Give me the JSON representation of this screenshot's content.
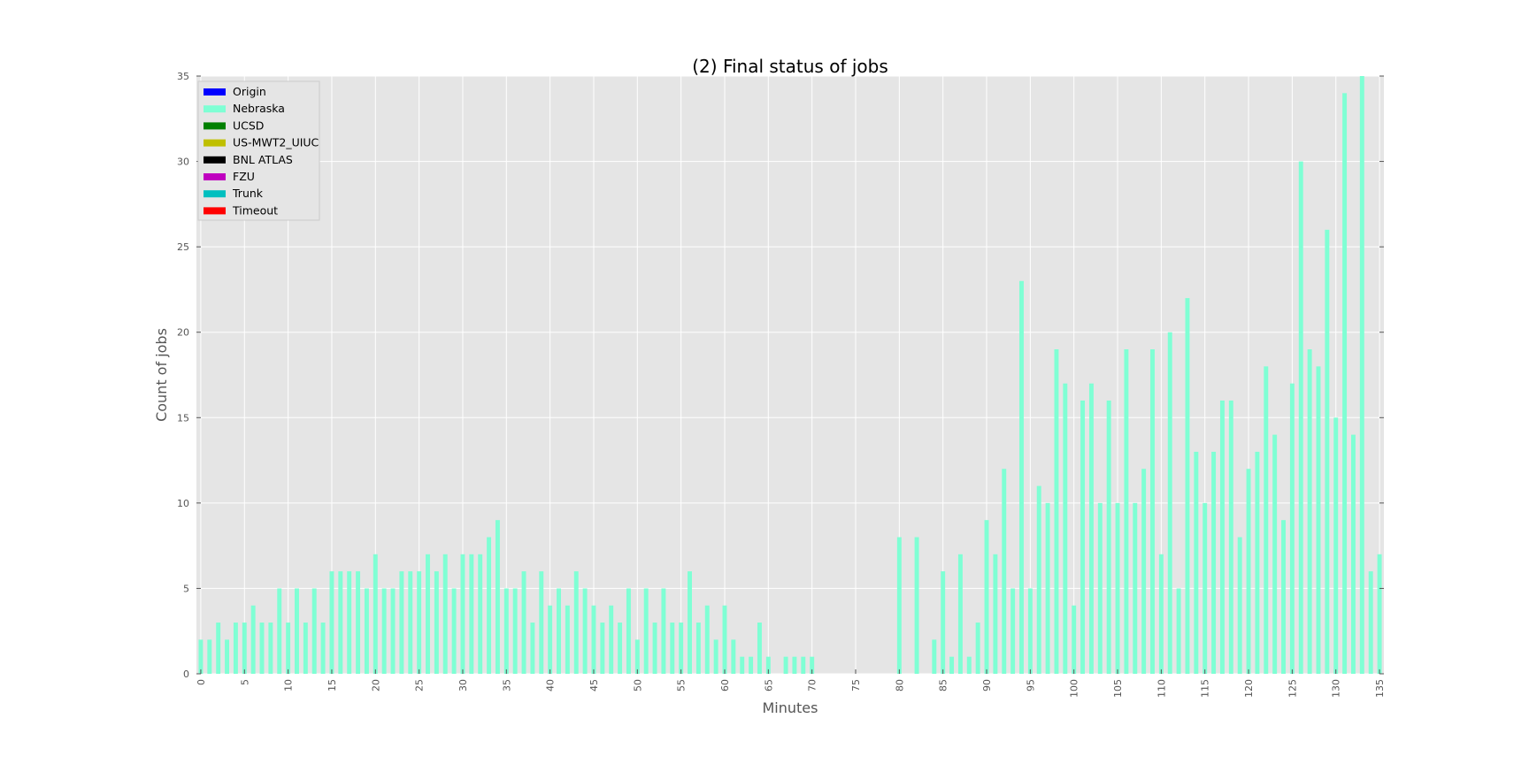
{
  "chart_data": {
    "type": "bar",
    "title": "(2) Final status of jobs",
    "xlabel": "Minutes",
    "ylabel": "Count of jobs",
    "ylim": [
      0,
      35
    ],
    "yticks": [
      "0",
      "5",
      "10",
      "15",
      "20",
      "25",
      "30",
      "35"
    ],
    "xticks": [
      "0",
      "5",
      "10",
      "15",
      "20",
      "25",
      "30",
      "35",
      "40",
      "45",
      "50",
      "55",
      "60",
      "65",
      "70",
      "75",
      "80",
      "85",
      "90",
      "95",
      "100",
      "105",
      "110",
      "115",
      "120",
      "125",
      "130",
      "135"
    ],
    "x_range": [
      0,
      135
    ],
    "grid": true,
    "legend_position": "top-left",
    "legend": [
      {
        "name": "Origin",
        "color": "#0000ff"
      },
      {
        "name": "Nebraska",
        "color": "#7fffd4"
      },
      {
        "name": "UCSD",
        "color": "#008000"
      },
      {
        "name": "US-MWT2_UIUC",
        "color": "#bfbf00"
      },
      {
        "name": "BNL ATLAS",
        "color": "#000000"
      },
      {
        "name": "FZU",
        "color": "#bf00bf"
      },
      {
        "name": "Trunk",
        "color": "#00bfbf"
      },
      {
        "name": "Timeout",
        "color": "#ff0000"
      }
    ],
    "series": [
      {
        "name": "Nebraska",
        "color": "#7fffd4",
        "values": [
          2,
          2,
          3,
          2,
          3,
          3,
          4,
          3,
          3,
          5,
          3,
          5,
          3,
          5,
          3,
          6,
          6,
          6,
          6,
          5,
          7,
          5,
          5,
          6,
          6,
          6,
          7,
          6,
          7,
          5,
          7,
          7,
          7,
          8,
          9,
          5,
          5,
          6,
          3,
          6,
          4,
          5,
          4,
          6,
          5,
          4,
          3,
          4,
          3,
          5,
          2,
          5,
          3,
          5,
          3,
          3,
          6,
          3,
          4,
          2,
          4,
          2,
          1,
          1,
          3,
          1,
          0,
          1,
          1,
          1,
          1,
          0,
          0,
          0,
          0,
          0,
          0,
          0,
          0,
          0,
          8,
          0,
          8,
          0,
          2,
          6,
          1,
          7,
          1,
          3,
          9,
          7,
          12,
          5,
          23,
          5,
          11,
          10,
          19,
          17,
          4,
          16,
          17,
          10,
          16,
          10,
          19,
          10,
          12,
          19,
          7,
          20,
          5,
          22,
          13,
          10,
          13,
          16,
          16,
          8,
          12,
          13,
          18,
          14,
          9,
          17,
          30,
          19,
          18,
          26,
          15,
          34,
          14,
          35,
          6,
          7
        ]
      }
    ]
  }
}
